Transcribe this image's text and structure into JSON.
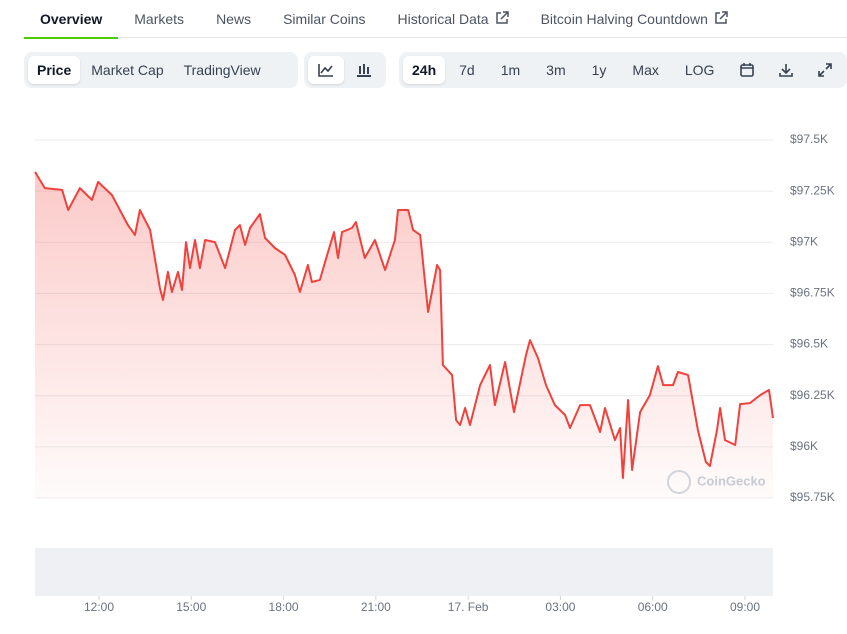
{
  "tabs": [
    "Overview",
    "Markets",
    "News",
    "Similar Coins",
    "Historical Data",
    "Bitcoin Halving Countdown"
  ],
  "metrics": [
    "Price",
    "Market Cap",
    "TradingView"
  ],
  "ranges": [
    "24h",
    "7d",
    "1m",
    "3m",
    "1y",
    "Max",
    "LOG"
  ],
  "watermark": "CoinGecko",
  "chart_data": {
    "type": "line",
    "color": "#f0423c",
    "x": [
      9.92,
      10.24,
      10.8,
      11.0,
      11.38,
      11.77,
      11.97,
      12.42,
      12.94,
      13.17,
      13.33,
      13.66,
      13.98,
      14.08,
      14.24,
      14.37,
      14.57,
      14.7,
      14.83,
      14.96,
      15.12,
      15.28,
      15.45,
      15.77,
      16.1,
      16.42,
      16.58,
      16.75,
      16.91,
      17.23,
      17.4,
      17.72,
      18.05,
      18.37,
      18.53,
      18.79,
      18.92,
      19.18,
      19.35,
      19.64,
      19.77,
      19.9,
      20.22,
      20.35,
      20.64,
      20.97,
      21.3,
      21.62,
      21.72,
      22.05,
      22.21,
      22.44,
      22.7,
      22.99,
      23.09,
      23.18,
      23.48,
      23.61,
      23.74,
      23.9,
      24.06,
      24.39,
      24.71,
      24.87,
      25.2,
      25.49,
      25.88,
      26.01,
      26.27,
      26.53,
      26.82,
      27.15,
      27.31,
      27.64,
      27.96,
      28.29,
      28.45,
      28.77,
      28.94,
      29.03,
      29.2,
      29.33,
      29.59,
      29.91,
      30.17,
      30.34,
      30.66,
      30.82,
      31.15,
      31.47,
      31.73,
      31.86,
      32.09,
      32.19,
      32.35,
      32.68,
      32.84,
      33.16,
      33.49,
      33.78,
      33.91
    ],
    "values": [
      97344,
      97265,
      97256,
      97158,
      97265,
      97207,
      97295,
      97231,
      97084,
      97036,
      97158,
      97060,
      96776,
      96718,
      96855,
      96757,
      96855,
      96767,
      97001,
      96874,
      97011,
      96874,
      97011,
      97001,
      96874,
      97060,
      97084,
      96987,
      97070,
      97138,
      97021,
      96972,
      96938,
      96840,
      96757,
      96889,
      96806,
      96816,
      96904,
      97050,
      96923,
      97050,
      97070,
      97099,
      96923,
      97011,
      96864,
      97011,
      97158,
      97158,
      97060,
      97036,
      96659,
      96889,
      96864,
      96400,
      96351,
      96131,
      96107,
      96190,
      96107,
      96302,
      96400,
      96204,
      96415,
      96170,
      96449,
      96522,
      96434,
      96302,
      96204,
      96156,
      96092,
      96204,
      96204,
      96072,
      96190,
      96033,
      96092,
      95848,
      96229,
      95887,
      96170,
      96253,
      96395,
      96302,
      96302,
      96366,
      96351,
      96082,
      95926,
      95906,
      96082,
      96190,
      96033,
      96009,
      96209,
      96214,
      96253,
      96278,
      96141
    ],
    "xlim": [
      9.92,
      33.91
    ],
    "xticks": [
      {
        "value": 12,
        "label": "12:00"
      },
      {
        "value": 15,
        "label": "15:00"
      },
      {
        "value": 18,
        "label": "18:00"
      },
      {
        "value": 21,
        "label": "21:00"
      },
      {
        "value": 24,
        "label": "17. Feb"
      },
      {
        "value": 27,
        "label": "03:00"
      },
      {
        "value": 30,
        "label": "06:00"
      },
      {
        "value": 33,
        "label": "09:00"
      }
    ],
    "ylim": [
      95750,
      97500
    ],
    "yticks": [
      {
        "value": 95750,
        "label": "$95.75K"
      },
      {
        "value": 96000,
        "label": "$96K"
      },
      {
        "value": 96250,
        "label": "$96.25K"
      },
      {
        "value": 96500,
        "label": "$96.5K"
      },
      {
        "value": 96750,
        "label": "$96.75K"
      },
      {
        "value": 97000,
        "label": "$97K"
      },
      {
        "value": 97250,
        "label": "$97.25K"
      },
      {
        "value": 97500,
        "label": "$97.5K"
      }
    ],
    "grid": true
  }
}
